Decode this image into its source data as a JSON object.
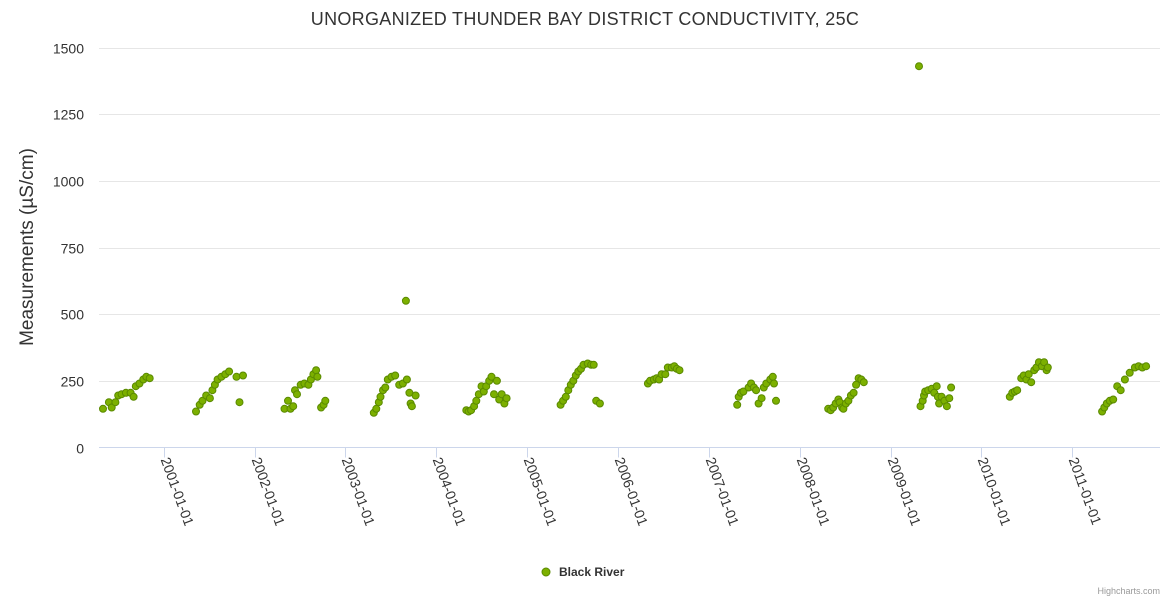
{
  "chart_data": {
    "type": "scatter",
    "title": "UNORGANIZED THUNDER BAY DISTRICT CONDUCTIVITY, 25C",
    "ylabel": "Measurements (µS/cm)",
    "xlabel": "",
    "ylim": [
      0,
      1500
    ],
    "y_ticks": [
      0,
      250,
      500,
      750,
      1000,
      1250,
      1500
    ],
    "x_range": [
      "2000-04-15",
      "2011-12-20"
    ],
    "x_ticks": [
      "2001-01-01",
      "2002-01-01",
      "2003-01-01",
      "2004-01-01",
      "2005-01-01",
      "2006-01-01",
      "2007-01-01",
      "2008-01-01",
      "2009-01-01",
      "2010-01-01",
      "2011-01-01"
    ],
    "grid": true,
    "legend_position": "bottom-center",
    "color": "#7cb000",
    "marker_border": "#5a8a00",
    "credits": "Highcharts.com",
    "series": [
      {
        "name": "Black River",
        "points": [
          [
            "2000-05-01",
            145
          ],
          [
            "2000-05-25",
            170
          ],
          [
            "2000-06-05",
            150
          ],
          [
            "2000-06-20",
            170
          ],
          [
            "2000-07-01",
            195
          ],
          [
            "2000-07-15",
            200
          ],
          [
            "2000-08-01",
            205
          ],
          [
            "2000-08-20",
            205
          ],
          [
            "2000-09-01",
            190
          ],
          [
            "2000-09-10",
            230
          ],
          [
            "2000-09-25",
            240
          ],
          [
            "2000-10-10",
            255
          ],
          [
            "2000-10-22",
            265
          ],
          [
            "2000-11-05",
            260
          ],
          [
            "2001-05-10",
            135
          ],
          [
            "2001-05-25",
            160
          ],
          [
            "2001-06-05",
            175
          ],
          [
            "2001-06-20",
            195
          ],
          [
            "2001-07-05",
            185
          ],
          [
            "2001-07-15",
            215
          ],
          [
            "2001-07-25",
            235
          ],
          [
            "2001-08-05",
            255
          ],
          [
            "2001-08-20",
            265
          ],
          [
            "2001-09-05",
            275
          ],
          [
            "2001-09-20",
            285
          ],
          [
            "2001-10-20",
            265
          ],
          [
            "2001-11-01",
            170
          ],
          [
            "2001-11-15",
            270
          ],
          [
            "2002-05-01",
            145
          ],
          [
            "2002-05-15",
            175
          ],
          [
            "2002-05-25",
            145
          ],
          [
            "2002-06-05",
            155
          ],
          [
            "2002-06-12",
            215
          ],
          [
            "2002-06-20",
            200
          ],
          [
            "2002-07-05",
            235
          ],
          [
            "2002-07-20",
            240
          ],
          [
            "2002-08-05",
            235
          ],
          [
            "2002-08-15",
            255
          ],
          [
            "2002-08-25",
            275
          ],
          [
            "2002-09-05",
            290
          ],
          [
            "2002-09-10",
            265
          ],
          [
            "2002-09-25",
            150
          ],
          [
            "2002-10-05",
            160
          ],
          [
            "2002-10-12",
            175
          ],
          [
            "2003-04-25",
            130
          ],
          [
            "2003-05-05",
            145
          ],
          [
            "2003-05-15",
            170
          ],
          [
            "2003-05-22",
            190
          ],
          [
            "2003-06-01",
            215
          ],
          [
            "2003-06-10",
            225
          ],
          [
            "2003-06-20",
            255
          ],
          [
            "2003-07-05",
            265
          ],
          [
            "2003-07-20",
            270
          ],
          [
            "2003-08-05",
            235
          ],
          [
            "2003-08-20",
            240
          ],
          [
            "2003-09-01",
            550
          ],
          [
            "2003-09-05",
            255
          ],
          [
            "2003-09-15",
            205
          ],
          [
            "2003-09-20",
            165
          ],
          [
            "2003-09-25",
            155
          ],
          [
            "2003-10-10",
            195
          ],
          [
            "2004-05-01",
            140
          ],
          [
            "2004-05-10",
            135
          ],
          [
            "2004-05-20",
            140
          ],
          [
            "2004-06-01",
            155
          ],
          [
            "2004-06-10",
            175
          ],
          [
            "2004-06-20",
            200
          ],
          [
            "2004-07-01",
            230
          ],
          [
            "2004-07-10",
            210
          ],
          [
            "2004-07-20",
            230
          ],
          [
            "2004-08-01",
            250
          ],
          [
            "2004-08-10",
            265
          ],
          [
            "2004-08-20",
            200
          ],
          [
            "2004-09-01",
            250
          ],
          [
            "2004-09-10",
            180
          ],
          [
            "2004-09-20",
            200
          ],
          [
            "2004-10-01",
            165
          ],
          [
            "2004-10-10",
            185
          ],
          [
            "2005-05-15",
            160
          ],
          [
            "2005-05-25",
            175
          ],
          [
            "2005-06-05",
            190
          ],
          [
            "2005-06-15",
            215
          ],
          [
            "2005-06-25",
            235
          ],
          [
            "2005-07-05",
            250
          ],
          [
            "2005-07-15",
            270
          ],
          [
            "2005-07-25",
            285
          ],
          [
            "2005-08-05",
            295
          ],
          [
            "2005-08-15",
            310
          ],
          [
            "2005-09-01",
            315
          ],
          [
            "2005-09-15",
            310
          ],
          [
            "2005-09-25",
            310
          ],
          [
            "2005-10-05",
            175
          ],
          [
            "2005-10-20",
            165
          ],
          [
            "2006-05-01",
            240
          ],
          [
            "2006-05-10",
            250
          ],
          [
            "2006-05-25",
            255
          ],
          [
            "2006-06-05",
            260
          ],
          [
            "2006-06-15",
            255
          ],
          [
            "2006-06-25",
            275
          ],
          [
            "2006-07-10",
            275
          ],
          [
            "2006-07-20",
            300
          ],
          [
            "2006-08-05",
            300
          ],
          [
            "2006-08-15",
            305
          ],
          [
            "2006-08-25",
            295
          ],
          [
            "2006-09-05",
            290
          ],
          [
            "2007-04-25",
            160
          ],
          [
            "2007-05-01",
            190
          ],
          [
            "2007-05-10",
            205
          ],
          [
            "2007-05-20",
            210
          ],
          [
            "2007-06-10",
            225
          ],
          [
            "2007-06-20",
            240
          ],
          [
            "2007-07-01",
            225
          ],
          [
            "2007-07-10",
            215
          ],
          [
            "2007-07-20",
            165
          ],
          [
            "2007-08-01",
            185
          ],
          [
            "2007-08-10",
            225
          ],
          [
            "2007-08-20",
            240
          ],
          [
            "2007-09-05",
            255
          ],
          [
            "2007-09-15",
            265
          ],
          [
            "2007-09-20",
            240
          ],
          [
            "2007-09-28",
            175
          ],
          [
            "2008-04-25",
            145
          ],
          [
            "2008-05-05",
            140
          ],
          [
            "2008-05-15",
            150
          ],
          [
            "2008-05-25",
            165
          ],
          [
            "2008-06-05",
            180
          ],
          [
            "2008-06-10",
            170
          ],
          [
            "2008-06-20",
            150
          ],
          [
            "2008-06-25",
            145
          ],
          [
            "2008-07-05",
            165
          ],
          [
            "2008-07-15",
            175
          ],
          [
            "2008-07-25",
            195
          ],
          [
            "2008-08-05",
            205
          ],
          [
            "2008-08-15",
            235
          ],
          [
            "2008-08-25",
            260
          ],
          [
            "2008-09-05",
            255
          ],
          [
            "2008-09-15",
            245
          ],
          [
            "2009-04-25",
            1430
          ],
          [
            "2009-05-01",
            155
          ],
          [
            "2009-05-10",
            175
          ],
          [
            "2009-05-15",
            195
          ],
          [
            "2009-05-20",
            210
          ],
          [
            "2009-06-01",
            215
          ],
          [
            "2009-06-15",
            220
          ],
          [
            "2009-06-25",
            205
          ],
          [
            "2009-07-05",
            230
          ],
          [
            "2009-07-10",
            190
          ],
          [
            "2009-07-15",
            165
          ],
          [
            "2009-07-25",
            190
          ],
          [
            "2009-08-05",
            175
          ],
          [
            "2009-08-15",
            155
          ],
          [
            "2009-08-25",
            185
          ],
          [
            "2009-09-01",
            225
          ],
          [
            "2010-04-25",
            190
          ],
          [
            "2010-05-05",
            205
          ],
          [
            "2010-05-15",
            210
          ],
          [
            "2010-05-25",
            215
          ],
          [
            "2010-06-10",
            260
          ],
          [
            "2010-06-20",
            270
          ],
          [
            "2010-07-01",
            255
          ],
          [
            "2010-07-10",
            275
          ],
          [
            "2010-07-20",
            245
          ],
          [
            "2010-08-01",
            290
          ],
          [
            "2010-08-10",
            300
          ],
          [
            "2010-08-20",
            320
          ],
          [
            "2010-09-01",
            305
          ],
          [
            "2010-09-10",
            320
          ],
          [
            "2010-09-20",
            290
          ],
          [
            "2010-09-25",
            300
          ],
          [
            "2011-05-01",
            135
          ],
          [
            "2011-05-10",
            150
          ],
          [
            "2011-05-20",
            165
          ],
          [
            "2011-06-01",
            175
          ],
          [
            "2011-06-15",
            180
          ],
          [
            "2011-07-01",
            230
          ],
          [
            "2011-07-15",
            215
          ],
          [
            "2011-08-01",
            255
          ],
          [
            "2011-08-20",
            280
          ],
          [
            "2011-09-10",
            300
          ],
          [
            "2011-09-25",
            305
          ],
          [
            "2011-10-10",
            300
          ],
          [
            "2011-10-25",
            305
          ]
        ]
      }
    ]
  }
}
